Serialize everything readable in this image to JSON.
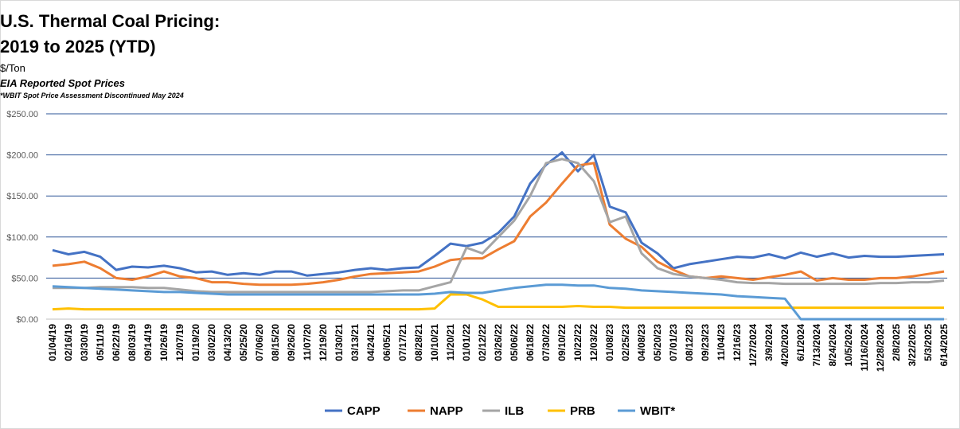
{
  "chart_data": {
    "type": "line",
    "title_lines": [
      "U.S. Thermal Coal Pricing:",
      "2019 to 2025 (YTD)"
    ],
    "subtitle": "$/Ton",
    "subtitle2": "EIA Reported Spot Prices",
    "note": "*WBIT Spot Price Assessment Discontinued May 2024",
    "y_tick_labels": [
      "$0.00",
      "$50.00",
      "$100.00",
      "$150.00",
      "$200.00",
      "$250.00"
    ],
    "ylim": [
      0,
      250
    ],
    "grid": true,
    "legend_position": "bottom",
    "x_tick_labels": [
      "01/04/19",
      "02/16/19",
      "03/30/19",
      "05/11/19",
      "06/22/19",
      "08/03/19",
      "09/14/19",
      "10/26/19",
      "12/07/19",
      "01/19/20",
      "03/02/20",
      "04/13/20",
      "05/25/20",
      "07/06/20",
      "08/15/20",
      "09/26/20",
      "11/07/20",
      "12/19/20",
      "01/30/21",
      "03/13/21",
      "04/24/21",
      "06/05/21",
      "07/17/21",
      "08/28/21",
      "10/10/21",
      "11/20/21",
      "01/01/22",
      "02/12/22",
      "03/26/22",
      "05/06/22",
      "06/18/22",
      "07/30/22",
      "09/10/22",
      "10/22/22",
      "12/03/22",
      "01/08/23",
      "02/25/23",
      "04/08/23",
      "05/20/23",
      "07/01/23",
      "08/12/23",
      "09/23/23",
      "11/04/23",
      "12/16/23",
      "1/27/2024",
      "3/9/2024",
      "4/20/2024",
      "6/1/2024",
      "7/13/2024",
      "8/24/2024",
      "10/5/2024",
      "11/16/2024",
      "12/28/2024",
      "2/8/2025",
      "3/22/2025",
      "5/3/2025",
      "6/14/2025"
    ],
    "x": [
      "01/04/19",
      "02/16/19",
      "03/30/19",
      "05/11/19",
      "06/22/19",
      "08/03/19",
      "09/14/19",
      "10/26/19",
      "12/07/19",
      "01/19/20",
      "03/02/20",
      "04/13/20",
      "05/25/20",
      "07/06/20",
      "08/15/20",
      "09/26/20",
      "11/07/20",
      "12/19/20",
      "01/30/21",
      "03/13/21",
      "04/24/21",
      "06/05/21",
      "07/17/21",
      "08/28/21",
      "10/10/21",
      "11/20/21",
      "01/01/22",
      "02/12/22",
      "03/26/22",
      "05/06/22",
      "06/18/22",
      "07/30/22",
      "09/10/22",
      "10/22/22",
      "12/03/22",
      "01/08/23",
      "02/25/23",
      "04/08/23",
      "05/20/23",
      "07/01/23",
      "08/12/23",
      "09/23/23",
      "11/04/23",
      "12/16/23",
      "1/27/2024",
      "3/9/2024",
      "4/20/2024",
      "6/1/2024",
      "7/13/2024",
      "8/24/2024",
      "10/5/2024",
      "11/16/2024",
      "12/28/2024",
      "2/8/2025",
      "3/22/2025",
      "5/3/2025",
      "6/14/2025"
    ],
    "series": [
      {
        "name": "CAPP",
        "color": "#4472c4",
        "values": [
          84,
          79,
          82,
          76,
          60,
          64,
          63,
          65,
          62,
          57,
          58,
          54,
          56,
          54,
          58,
          58,
          53,
          55,
          57,
          60,
          62,
          60,
          62,
          63,
          77,
          92,
          89,
          93,
          105,
          125,
          165,
          188,
          203,
          180,
          200,
          137,
          130,
          93,
          80,
          62,
          67,
          70,
          73,
          76,
          75,
          79,
          74,
          81,
          76,
          80,
          75,
          77,
          76,
          76,
          77,
          78,
          79
        ]
      },
      {
        "name": "NAPP",
        "color": "#ed7d31",
        "values": [
          65,
          67,
          70,
          62,
          50,
          48,
          52,
          58,
          52,
          50,
          45,
          45,
          43,
          42,
          42,
          42,
          43,
          45,
          48,
          52,
          55,
          56,
          57,
          58,
          64,
          72,
          74,
          74,
          85,
          95,
          125,
          142,
          165,
          187,
          190,
          115,
          98,
          88,
          70,
          60,
          52,
          50,
          52,
          50,
          48,
          51,
          54,
          58,
          47,
          50,
          48,
          48,
          50,
          50,
          52,
          55,
          58
        ]
      },
      {
        "name": "ILB",
        "color": "#a5a5a5",
        "values": [
          38,
          38,
          38,
          39,
          39,
          39,
          38,
          38,
          36,
          34,
          33,
          33,
          33,
          33,
          33,
          33,
          33,
          33,
          33,
          33,
          33,
          34,
          35,
          35,
          40,
          45,
          87,
          80,
          100,
          120,
          150,
          190,
          195,
          190,
          168,
          118,
          125,
          80,
          62,
          55,
          52,
          50,
          48,
          45,
          44,
          44,
          43,
          43,
          43,
          43,
          43,
          43,
          44,
          44,
          45,
          45,
          47
        ]
      },
      {
        "name": "PRB",
        "color": "#ffc000",
        "values": [
          12,
          13,
          12,
          12,
          12,
          12,
          12,
          12,
          12,
          12,
          12,
          12,
          12,
          12,
          12,
          12,
          12,
          12,
          12,
          12,
          12,
          12,
          12,
          12,
          13,
          30,
          30,
          24,
          15,
          15,
          15,
          15,
          15,
          16,
          15,
          15,
          14,
          14,
          14,
          14,
          14,
          14,
          14,
          14,
          14,
          14,
          14,
          14,
          14,
          14,
          14,
          14,
          14,
          14,
          14,
          14,
          14
        ]
      },
      {
        "name": "WBIT*",
        "color": "#5b9bd5",
        "values": [
          40,
          39,
          38,
          37,
          36,
          35,
          34,
          33,
          33,
          32,
          31,
          30,
          30,
          30,
          30,
          30,
          30,
          30,
          30,
          30,
          30,
          30,
          30,
          30,
          31,
          33,
          32,
          32,
          35,
          38,
          40,
          42,
          42,
          41,
          41,
          38,
          37,
          35,
          34,
          33,
          32,
          31,
          30,
          28,
          27,
          26,
          25,
          0,
          0,
          0,
          0,
          0,
          0,
          0,
          0,
          0,
          0
        ]
      }
    ],
    "legend": [
      {
        "name": "CAPP",
        "color": "#4472c4"
      },
      {
        "name": "NAPP",
        "color": "#ed7d31"
      },
      {
        "name": "ILB",
        "color": "#a5a5a5"
      },
      {
        "name": "PRB",
        "color": "#ffc000"
      },
      {
        "name": "WBIT*",
        "color": "#5b9bd5"
      }
    ]
  }
}
